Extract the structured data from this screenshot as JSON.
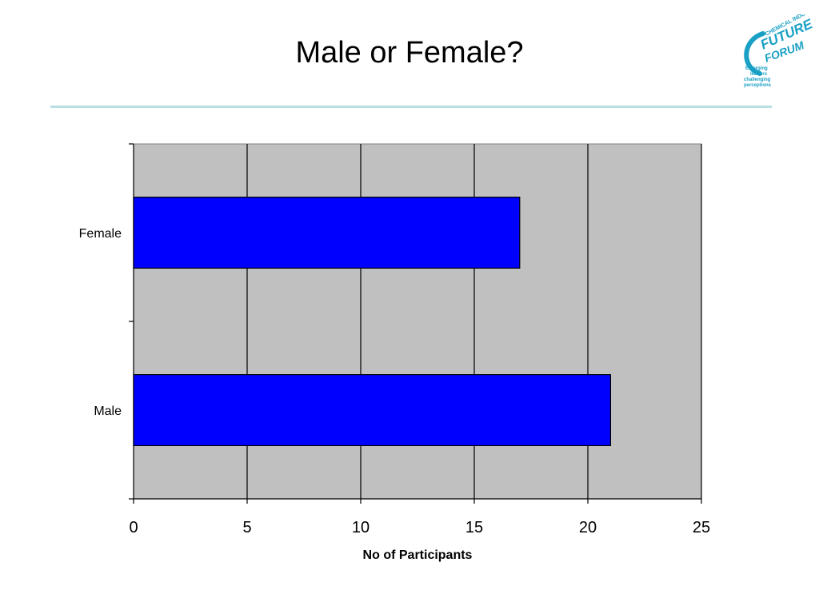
{
  "slide": {
    "title": "Male or Female?"
  },
  "logo": {
    "line1": "CHEMICAL INDUSTRIES",
    "line2": "FUTURE",
    "line3": "FORUM",
    "tagline": [
      "Emerging",
      "leaders",
      "challenging",
      "perceptions"
    ],
    "color": "#1aa0c4"
  },
  "colors": {
    "bar_fill": "#0000ff",
    "plot_bg": "#c0c0c0",
    "rule": "#b9dfe3"
  },
  "chart_data": {
    "type": "bar",
    "orientation": "horizontal",
    "categories": [
      "Female",
      "Male"
    ],
    "values": [
      17,
      21
    ],
    "xlabel": "No of Participants",
    "ylabel": "",
    "xlim": [
      0,
      25
    ],
    "xticks": [
      0,
      5,
      10,
      15,
      20,
      25
    ],
    "grid": "vertical",
    "legend": "none"
  }
}
